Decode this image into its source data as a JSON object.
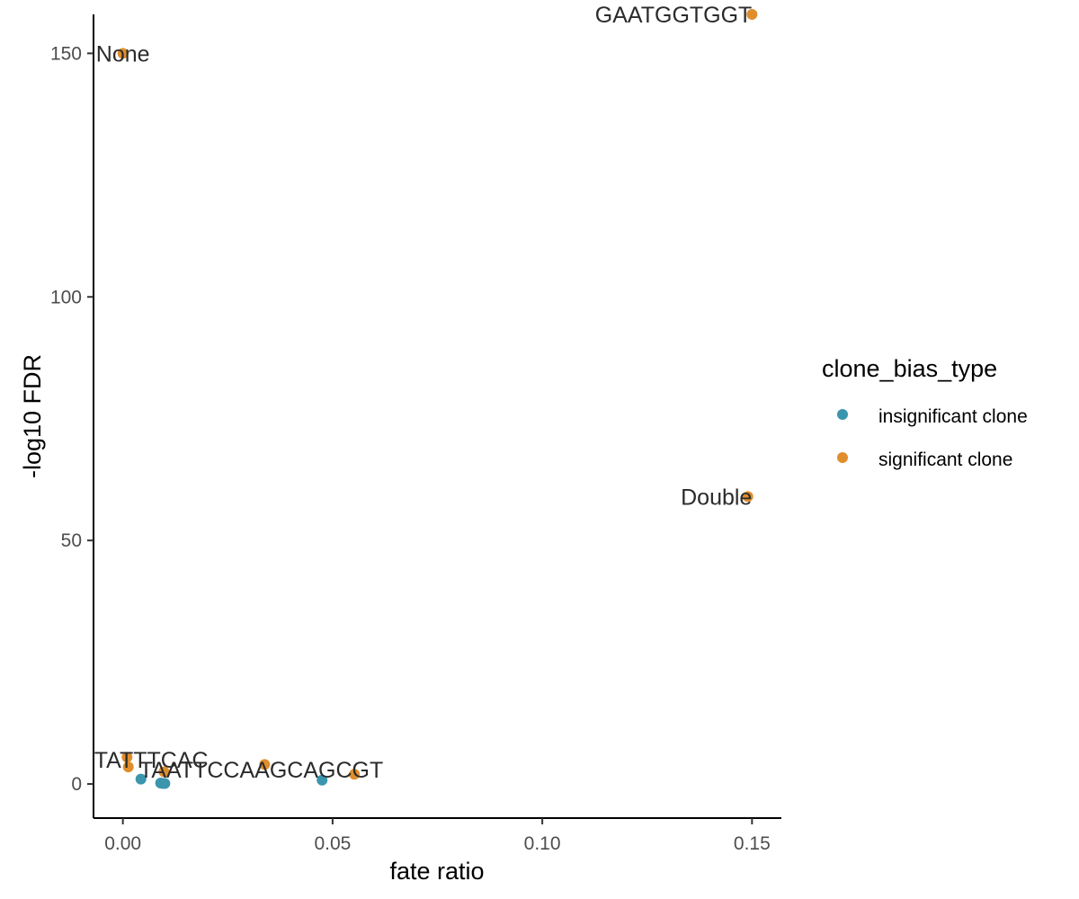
{
  "chart_data": {
    "type": "scatter",
    "title": "",
    "xlabel": "fate ratio",
    "ylabel": "-log10 FDR",
    "xlim": [
      -0.007,
      0.157
    ],
    "ylim": [
      -7,
      158
    ],
    "x_ticks": [
      0.0,
      0.05,
      0.1,
      0.15
    ],
    "x_tick_labels": [
      "0.00",
      "0.05",
      "0.10",
      "0.15"
    ],
    "y_ticks": [
      0,
      50,
      100,
      150
    ],
    "y_tick_labels": [
      "0",
      "50",
      "100",
      "150"
    ],
    "grid": false,
    "legend": {
      "title": "clone_bias_type",
      "placement": "right",
      "entries": [
        {
          "label": "insignificant clone",
          "color": "#3a95ad"
        },
        {
          "label": "significant clone",
          "color": "#e08e2c"
        }
      ]
    },
    "series": [
      {
        "color": "#3a95ad",
        "points": [
          {
            "x": 0.0043,
            "y": 1.0
          },
          {
            "x": 0.009,
            "y": 0.2
          },
          {
            "x": 0.0095,
            "y": 0.1
          },
          {
            "x": 0.01,
            "y": 0.1
          },
          {
            "x": 0.0475,
            "y": 0.8
          }
        ]
      },
      {
        "color": "#e08e2c",
        "points": [
          {
            "x": 0.0,
            "y": 150.0
          },
          {
            "x": 0.001,
            "y": 5.5
          },
          {
            "x": 0.0013,
            "y": 3.5
          },
          {
            "x": 0.0098,
            "y": 2.5
          },
          {
            "x": 0.0338,
            "y": 4.0
          },
          {
            "x": 0.0552,
            "y": 2.0
          },
          {
            "x": 0.149,
            "y": 59.0
          },
          {
            "x": 0.15,
            "y": 158.0
          }
        ]
      }
    ],
    "annotations": [
      {
        "text": "None",
        "x": 0.0,
        "y": 150.0,
        "anchor": "middle"
      },
      {
        "text": "GAATGGTGGT",
        "x": 0.15,
        "y": 158.0,
        "anchor": "end"
      },
      {
        "text": "Double",
        "x": 0.15,
        "y": 59.0,
        "anchor": "end"
      },
      {
        "text": "CACTATTTCAC",
        "x": 0.0011,
        "y": 5.0,
        "anchor": "middle"
      },
      {
        "text": "TAATTCCAAGCAGCGT",
        "x": 0.033,
        "y": 3.0,
        "anchor": "middle"
      }
    ]
  }
}
